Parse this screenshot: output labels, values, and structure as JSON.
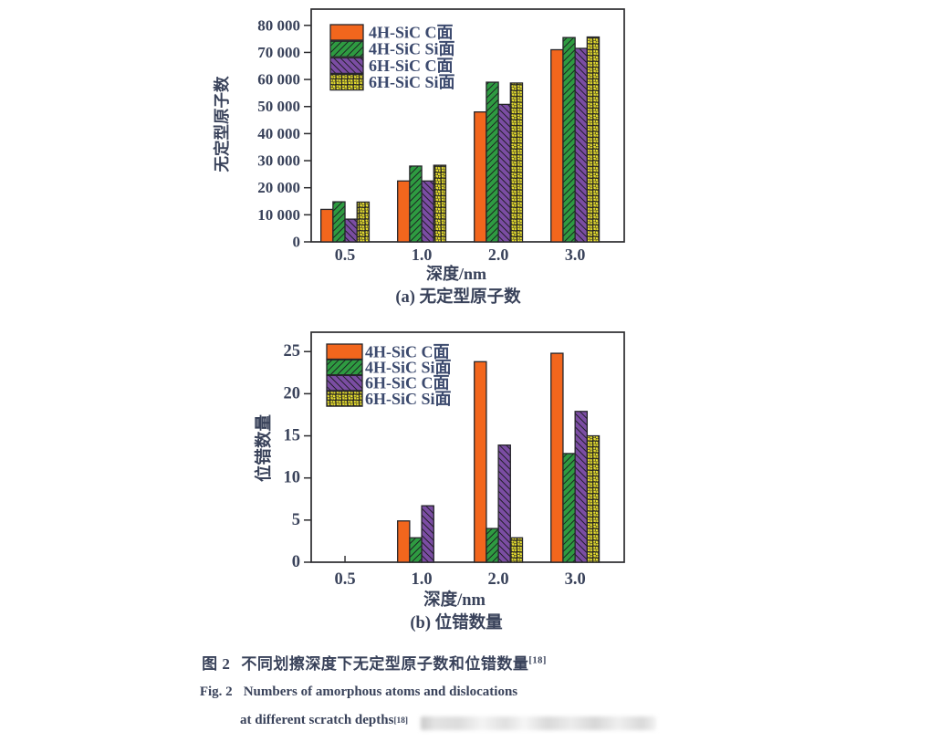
{
  "figure": {
    "caption_zh": {
      "prefix": "图 2",
      "text": "不同划擦深度下无定型原子数和位错数量",
      "ref": "[18]"
    },
    "caption_en": {
      "prefix": "Fig. 2",
      "line1": "Numbers of amorphous atoms and dislocations",
      "line2": "at different scratch depths",
      "ref": "[18]"
    }
  },
  "colors": {
    "series": [
      "#F2661D",
      "#2E9B41",
      "#7B4DA3",
      "#E9E02F"
    ],
    "hatch_line": "#1d1d22",
    "bar_stroke": "#26262b",
    "axis": "#2b2b2e",
    "text": "#39425a",
    "legend_text": "#3c4a6e",
    "background": "#ffffff",
    "watermark": "#dcdcdc"
  },
  "chart_data": [
    {
      "type": "bar",
      "title": "(a) 无定型原子数",
      "xlabel": "深度/nm",
      "ylabel": "无定型原子数",
      "categories": [
        "0.5",
        "1.0",
        "2.0",
        "3.0"
      ],
      "series": [
        {
          "name": "4H-SiC C面",
          "pattern": "solid",
          "values": [
            12000,
            22500,
            48000,
            71000
          ]
        },
        {
          "name": "4H-SiC Si面",
          "pattern": "hatch-up",
          "values": [
            14800,
            28000,
            59000,
            75500
          ]
        },
        {
          "name": "6H-SiC C面",
          "pattern": "hatch-down",
          "values": [
            8400,
            22500,
            50800,
            71500
          ]
        },
        {
          "name": "6H-SiC Si面",
          "pattern": "dot-grid",
          "values": [
            14700,
            28300,
            58700,
            75700
          ]
        }
      ],
      "ylim": [
        0,
        86000
      ],
      "yticks": [
        0,
        10000,
        20000,
        30000,
        40000,
        50000,
        60000,
        70000,
        80000
      ],
      "ytick_labels": [
        "0",
        "10 000",
        "20 000",
        "30 000",
        "40 000",
        "50 000",
        "60 000",
        "70 000",
        "80 000"
      ],
      "legend_position": "top-left",
      "grid": false
    },
    {
      "type": "bar",
      "title": "(b) 位错数量",
      "xlabel": "深度/nm",
      "ylabel": "位错数量",
      "categories": [
        "0.5",
        "1.0",
        "2.0",
        "3.0"
      ],
      "series": [
        {
          "name": "4H-SiC C面",
          "pattern": "solid",
          "values": [
            0,
            4.9,
            23.8,
            24.8
          ]
        },
        {
          "name": "4H-SiC Si面",
          "pattern": "hatch-up",
          "values": [
            0,
            2.9,
            4.0,
            12.9
          ]
        },
        {
          "name": "6H-SiC C面",
          "pattern": "hatch-down",
          "values": [
            0,
            6.7,
            13.9,
            17.9
          ]
        },
        {
          "name": "6H-SiC Si面",
          "pattern": "dot-grid",
          "values": [
            0,
            0,
            2.9,
            15.0
          ]
        }
      ],
      "ylim": [
        0,
        27.3
      ],
      "yticks": [
        0,
        5,
        10,
        15,
        20,
        25
      ],
      "ytick_labels": [
        "0",
        "5",
        "10",
        "15",
        "20",
        "25"
      ],
      "legend_position": "top-left",
      "grid": false
    }
  ]
}
